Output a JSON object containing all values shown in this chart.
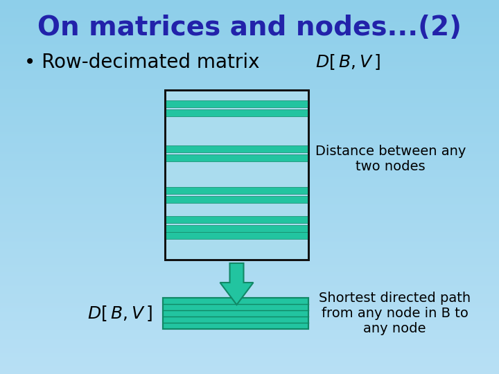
{
  "title": "On matrices and nodes...(2)",
  "title_color": "#2222aa",
  "title_fontsize": 28,
  "bg_color": "#8ecfea",
  "bullet_text": "Row-decimated matrix",
  "bullet_fontsize": 20,
  "label_dbv_fontsize": 18,
  "note1": "Distance between any\ntwo nodes",
  "note1_fontsize": 14,
  "note2": "Shortest directed path\nfrom any node in B to\nany node",
  "note2_fontsize": 14,
  "matrix_bg_color": "#aadcee",
  "stripe_color": "#22c4a0",
  "stripe_border": "#118866",
  "matrix_border": "#111111",
  "arrow_color": "#22c4a0",
  "arrow_border": "#118866"
}
